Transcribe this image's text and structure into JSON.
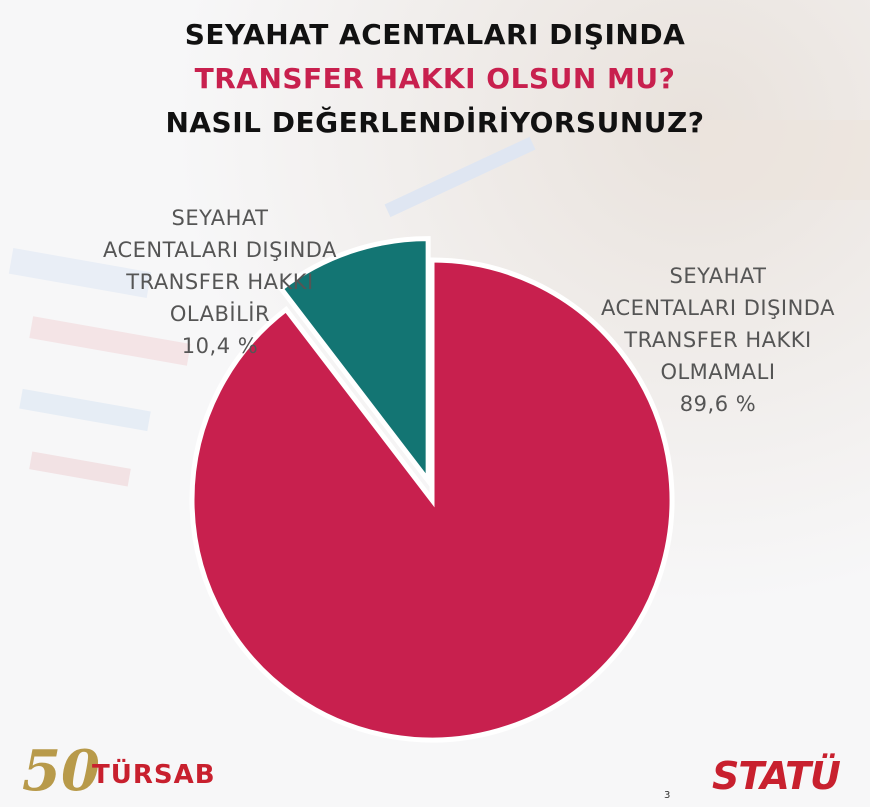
{
  "title": {
    "line1": "SEYAHAT ACENTALARI DIŞINDA",
    "line2": "TRANSFER HAKKI OLSUN MU?",
    "line3": "NASIL DEĞERLENDİRİYORSUNUZ?"
  },
  "chart_data": {
    "type": "pie",
    "slices": [
      {
        "label": "SEYAHAT\nACENTALARI DIŞINDA\nTRANSFER HAKKI\nOLMAMALI",
        "value": 89.6,
        "value_text": "89,6 %",
        "color": "#c8204e"
      },
      {
        "label": "SEYAHAT\nACENTALARI DIŞINDA\nTRANSFER HAKKI\nOLABİLİR",
        "value": 10.4,
        "value_text": "10,4 %",
        "color": "#137573",
        "exploded": true
      }
    ],
    "legend": "none"
  },
  "logos": {
    "left_number": "50",
    "left_name": "TÜRSAB",
    "right_name": "STATÜ"
  },
  "page_number": "3"
}
